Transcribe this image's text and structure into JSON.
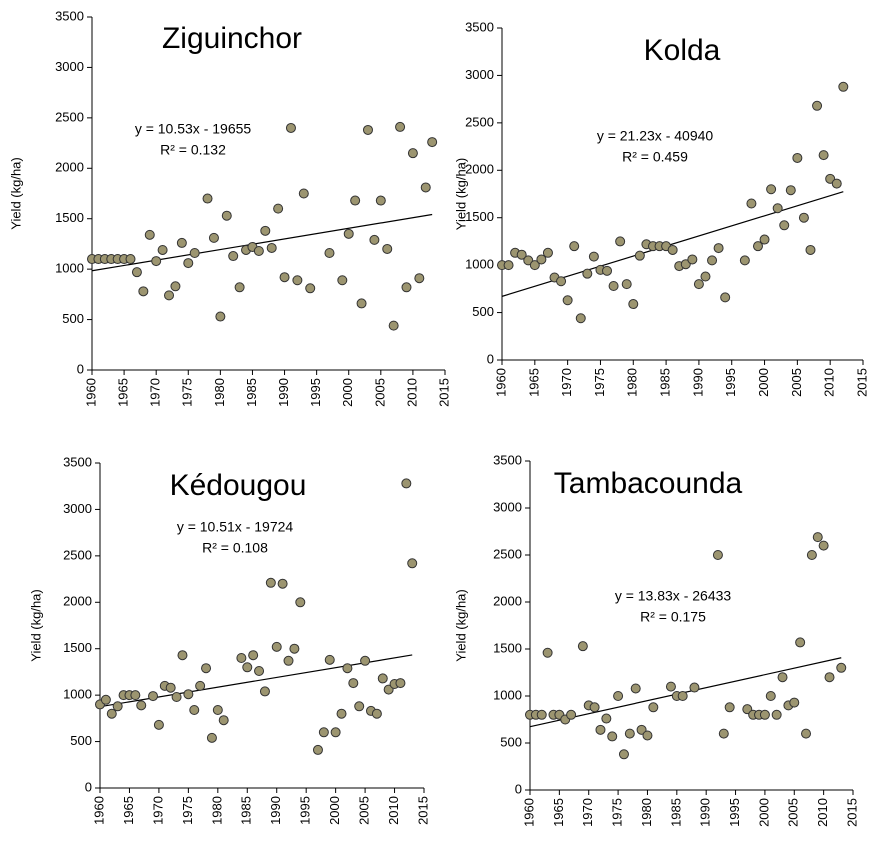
{
  "chart_data": [
    {
      "type": "scatter",
      "title": "Ziguinchor",
      "ylabel": "Yield (kg/ha)",
      "color": "#9c9570",
      "x": [
        1960,
        1961,
        1962,
        1963,
        1964,
        1965,
        1966,
        1967,
        1968,
        1969,
        1970,
        1971,
        1972,
        1973,
        1974,
        1975,
        1976,
        1978,
        1979,
        1980,
        1981,
        1982,
        1983,
        1984,
        1985,
        1986,
        1987,
        1988,
        1989,
        1990,
        1991,
        1992,
        1993,
        1994,
        1997,
        1999,
        2000,
        2001,
        2002,
        2003,
        2004,
        2005,
        2006,
        2007,
        2008,
        2009,
        2010,
        2011,
        2012,
        2013
      ],
      "values": [
        1100,
        1100,
        1100,
        1100,
        1100,
        1100,
        1100,
        970,
        780,
        1340,
        1080,
        1190,
        740,
        830,
        1260,
        1060,
        1160,
        1700,
        1310,
        530,
        1530,
        1130,
        820,
        1190,
        1220,
        1180,
        1380,
        1210,
        1600,
        920,
        2400,
        890,
        1750,
        810,
        1160,
        890,
        1350,
        1680,
        660,
        2380,
        1290,
        1680,
        1200,
        440,
        2410,
        820,
        2150,
        910,
        1810,
        2260
      ],
      "trendline": {
        "slope": 10.53,
        "intercept": -19655,
        "equation": "y = 10.53x - 19655",
        "r_squared": "R² = 0.132"
      },
      "xlim": [
        1960,
        2015
      ],
      "xticks": [
        1960,
        1965,
        1970,
        1975,
        1980,
        1985,
        1990,
        1995,
        2000,
        2005,
        2010,
        2015
      ],
      "ylim": [
        0,
        3500
      ],
      "yticks": [
        0,
        500,
        1000,
        1500,
        2000,
        2500,
        3000,
        3500
      ]
    },
    {
      "type": "scatter",
      "title": "Kolda",
      "ylabel": "Yield (kg/ha)",
      "color": "#9c9570",
      "x": [
        1960,
        1961,
        1962,
        1963,
        1964,
        1965,
        1966,
        1967,
        1968,
        1969,
        1970,
        1971,
        1972,
        1973,
        1974,
        1975,
        1976,
        1977,
        1978,
        1979,
        1980,
        1981,
        1982,
        1983,
        1984,
        1985,
        1986,
        1987,
        1988,
        1989,
        1990,
        1991,
        1992,
        1993,
        1994,
        1997,
        1998,
        1999,
        2000,
        2001,
        2002,
        2003,
        2004,
        2005,
        2006,
        2007,
        2008,
        2009,
        2010,
        2011,
        2012
      ],
      "values": [
        1000,
        1000,
        1130,
        1110,
        1050,
        1000,
        1060,
        1130,
        870,
        830,
        630,
        1200,
        440,
        910,
        1090,
        950,
        940,
        780,
        1250,
        800,
        590,
        1100,
        1220,
        1200,
        1200,
        1200,
        1160,
        990,
        1010,
        1060,
        800,
        880,
        1050,
        1180,
        660,
        1050,
        1650,
        1200,
        1270,
        1800,
        1600,
        1420,
        1790,
        2130,
        1500,
        1160,
        2680,
        2160,
        1910,
        1860,
        2880
      ],
      "trendline": {
        "slope": 21.23,
        "intercept": -40940,
        "equation": "y = 21.23x - 40940",
        "r_squared": "R² = 0.459"
      },
      "xlim": [
        1960,
        2015
      ],
      "xticks": [
        1960,
        1965,
        1970,
        1975,
        1980,
        1985,
        1990,
        1995,
        2000,
        2005,
        2010,
        2015
      ],
      "ylim": [
        0,
        3500
      ],
      "yticks": [
        0,
        500,
        1000,
        1500,
        2000,
        2500,
        3000,
        3500
      ]
    },
    {
      "type": "scatter",
      "title": "Kédougou",
      "ylabel": "Yield (kg/ha)",
      "color": "#9c9570",
      "x": [
        1960,
        1961,
        1962,
        1963,
        1964,
        1965,
        1966,
        1967,
        1969,
        1970,
        1971,
        1972,
        1973,
        1974,
        1975,
        1976,
        1977,
        1978,
        1979,
        1980,
        1981,
        1984,
        1985,
        1986,
        1987,
        1988,
        1989,
        1990,
        1991,
        1992,
        1993,
        1994,
        1997,
        1998,
        1999,
        2000,
        2001,
        2002,
        2003,
        2004,
        2005,
        2006,
        2007,
        2008,
        2009,
        2010,
        2011,
        2012,
        2013
      ],
      "values": [
        900,
        950,
        800,
        880,
        1000,
        1000,
        1000,
        890,
        990,
        680,
        1100,
        1080,
        980,
        1430,
        1010,
        840,
        1100,
        1290,
        540,
        840,
        730,
        1400,
        1300,
        1430,
        1260,
        1040,
        2210,
        1520,
        2200,
        1370,
        1500,
        2000,
        410,
        600,
        1380,
        600,
        800,
        1290,
        1130,
        880,
        1370,
        830,
        800,
        1180,
        1060,
        1120,
        1130,
        3280,
        2420
      ],
      "trendline": {
        "slope": 10.51,
        "intercept": -19724,
        "equation": "y = 10.51x - 19724",
        "r_squared": "R² = 0.108"
      },
      "xlim": [
        1960,
        2015
      ],
      "xticks": [
        1960,
        1965,
        1970,
        1975,
        1980,
        1985,
        1990,
        1995,
        2000,
        2005,
        2010,
        2015
      ],
      "ylim": [
        0,
        3500
      ],
      "yticks": [
        0,
        500,
        1000,
        1500,
        2000,
        2500,
        3000,
        3500
      ]
    },
    {
      "type": "scatter",
      "title": "Tambacounda",
      "ylabel": "Yield (kg/ha)",
      "color": "#9c9570",
      "x": [
        1960,
        1961,
        1962,
        1963,
        1964,
        1965,
        1966,
        1967,
        1969,
        1970,
        1971,
        1972,
        1973,
        1974,
        1975,
        1976,
        1977,
        1978,
        1979,
        1980,
        1981,
        1984,
        1985,
        1986,
        1988,
        1992,
        1993,
        1994,
        1997,
        1998,
        1999,
        2000,
        2001,
        2002,
        2003,
        2004,
        2005,
        2006,
        2007,
        2008,
        2009,
        2010,
        2011,
        2013
      ],
      "values": [
        800,
        800,
        800,
        1460,
        800,
        800,
        750,
        800,
        1530,
        900,
        880,
        640,
        760,
        570,
        1000,
        380,
        600,
        1080,
        640,
        580,
        880,
        1100,
        1000,
        1000,
        1090,
        2500,
        600,
        880,
        860,
        800,
        800,
        800,
        1000,
        800,
        1200,
        900,
        930,
        1570,
        600,
        2500,
        2690,
        2600,
        1200,
        1300
      ],
      "trendline": {
        "slope": 13.83,
        "intercept": -26433,
        "equation": "y = 13.83x - 26433",
        "r_squared": "R² = 0.175"
      },
      "xlim": [
        1960,
        2015
      ],
      "xticks": [
        1960,
        1965,
        1970,
        1975,
        1980,
        1985,
        1990,
        1995,
        2000,
        2005,
        2010,
        2015
      ],
      "ylim": [
        0,
        3500
      ],
      "yticks": [
        0,
        500,
        1000,
        1500,
        2000,
        2500,
        3000,
        3500
      ]
    }
  ]
}
